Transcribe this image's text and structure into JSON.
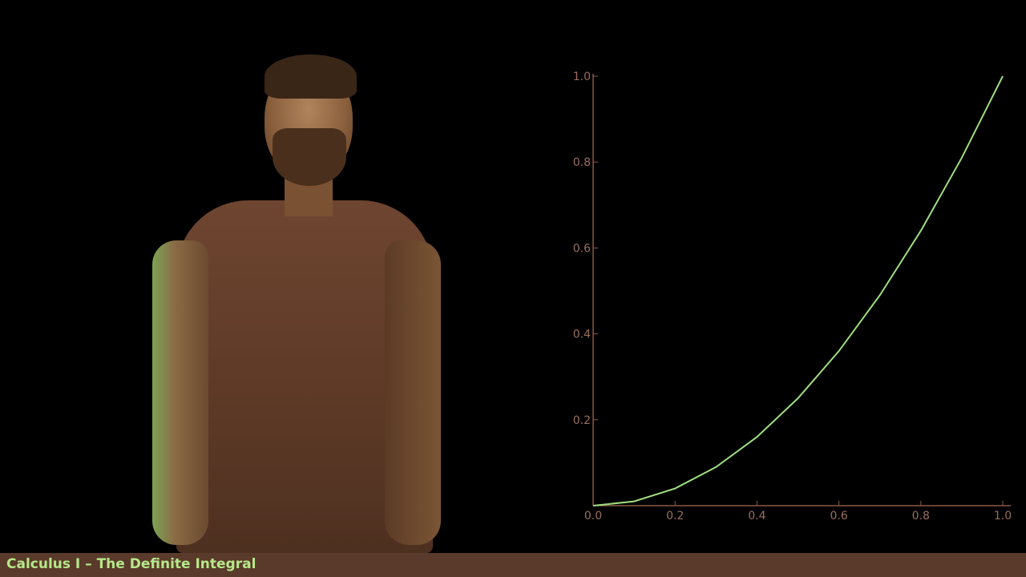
{
  "caption": {
    "text": "Calculus I – The Definite Integral"
  },
  "colors": {
    "curve": "#9fdf80",
    "axis": "#8a5a48",
    "caption_bar": "#5a3a2a",
    "caption_text": "#b5e889"
  },
  "chart_data": {
    "type": "line",
    "title": "",
    "xlabel": "",
    "ylabel": "",
    "xlim": [
      0,
      1
    ],
    "ylim": [
      0,
      1
    ],
    "x_ticks": [
      "0.0",
      "0.2",
      "0.4",
      "0.6",
      "0.8",
      "1.0"
    ],
    "y_ticks": [
      "0.2",
      "0.4",
      "0.6",
      "0.8",
      "1.0"
    ],
    "grid": false,
    "legend": "none",
    "series": [
      {
        "x": [
          0,
          0.1,
          0.2,
          0.3,
          0.4,
          0.5,
          0.6,
          0.7,
          0.8,
          0.9,
          1.0
        ],
        "y": [
          0,
          0.01,
          0.04,
          0.09,
          0.16,
          0.25,
          0.36,
          0.49,
          0.64,
          0.81,
          1.0
        ]
      }
    ]
  }
}
